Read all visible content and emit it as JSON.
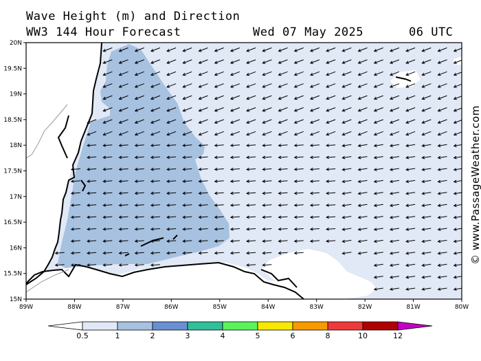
{
  "title": {
    "line1": "Wave Height (m) and Direction",
    "line2": "WW3 144 Hour Forecast",
    "date": "Wed 07 May 2025",
    "time": "06 UTC"
  },
  "credit": "© www.PassageWeather.com",
  "map": {
    "lon_range": [
      -89,
      -80
    ],
    "lat_range": [
      15,
      20
    ],
    "lat_ticks": [
      "20N",
      "19.5N",
      "19N",
      "18.5N",
      "18N",
      "17.5N",
      "17N",
      "16.5N",
      "16N",
      "15.5N",
      "15N"
    ],
    "lon_ticks": [
      "89W",
      "88W",
      "87W",
      "86W",
      "85W",
      "84W",
      "83W",
      "82W",
      "81W",
      "80W"
    ],
    "wave_direction": "westward",
    "colors": {
      "land": "#ffffff",
      "wave_0_5_1": "#e1e8f6",
      "wave_1_2": "#a7c1e0",
      "coast": "#000000",
      "border": "#999999"
    }
  },
  "legend": {
    "labels": [
      "0.5",
      "1",
      "2",
      "3",
      "4",
      "5",
      "6",
      "8",
      "10",
      "12"
    ],
    "colors": [
      "#ffffff",
      "#e1e8f6",
      "#a7c1e0",
      "#6a8fd2",
      "#2fbf9a",
      "#5cf25c",
      "#f7e800",
      "#f79a00",
      "#ee3a3a",
      "#b00000",
      "#c400c4"
    ]
  }
}
